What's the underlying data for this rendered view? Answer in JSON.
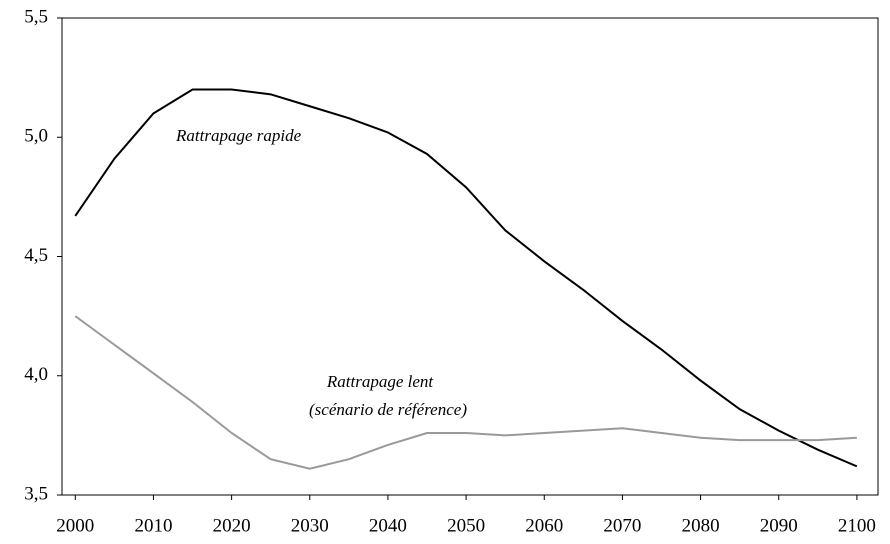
{
  "chart_data": {
    "type": "line",
    "x": [
      2000,
      2005,
      2010,
      2015,
      2020,
      2025,
      2030,
      2035,
      2040,
      2045,
      2050,
      2055,
      2060,
      2065,
      2070,
      2075,
      2080,
      2085,
      2090,
      2095,
      2100
    ],
    "series": [
      {
        "color": "#000000",
        "values": [
          4.67,
          4.91,
          5.1,
          5.2,
          5.2,
          5.18,
          5.13,
          5.08,
          5.02,
          4.93,
          4.79,
          4.61,
          4.48,
          4.36,
          4.23,
          4.11,
          3.98,
          3.86,
          3.77,
          3.69,
          3.62
        ]
      },
      {
        "color": "#999999",
        "values": [
          4.25,
          4.13,
          4.01,
          3.89,
          3.76,
          3.65,
          3.61,
          3.65,
          3.71,
          3.76,
          3.76,
          3.75,
          3.76,
          3.77,
          3.78,
          3.76,
          3.74,
          3.73,
          3.73,
          3.73,
          3.74
        ]
      }
    ],
    "annotations": [
      "Rattrapage rapide",
      "Rattrapage lent",
      "(scénario de référence)"
    ],
    "xlim": [
      1998.3,
      2102.7
    ],
    "xticks": [
      2000,
      2010,
      2020,
      2030,
      2040,
      2050,
      2060,
      2070,
      2080,
      2090,
      2100
    ],
    "ylim": [
      3.5,
      5.5
    ],
    "yticks": [
      {
        "value": 3.5,
        "label": "3,5"
      },
      {
        "value": 4.0,
        "label": "4,0"
      },
      {
        "value": 4.5,
        "label": "4,5"
      },
      {
        "value": 5.0,
        "label": "5,0"
      },
      {
        "value": 5.5,
        "label": "5,5"
      }
    ],
    "grid": false
  }
}
